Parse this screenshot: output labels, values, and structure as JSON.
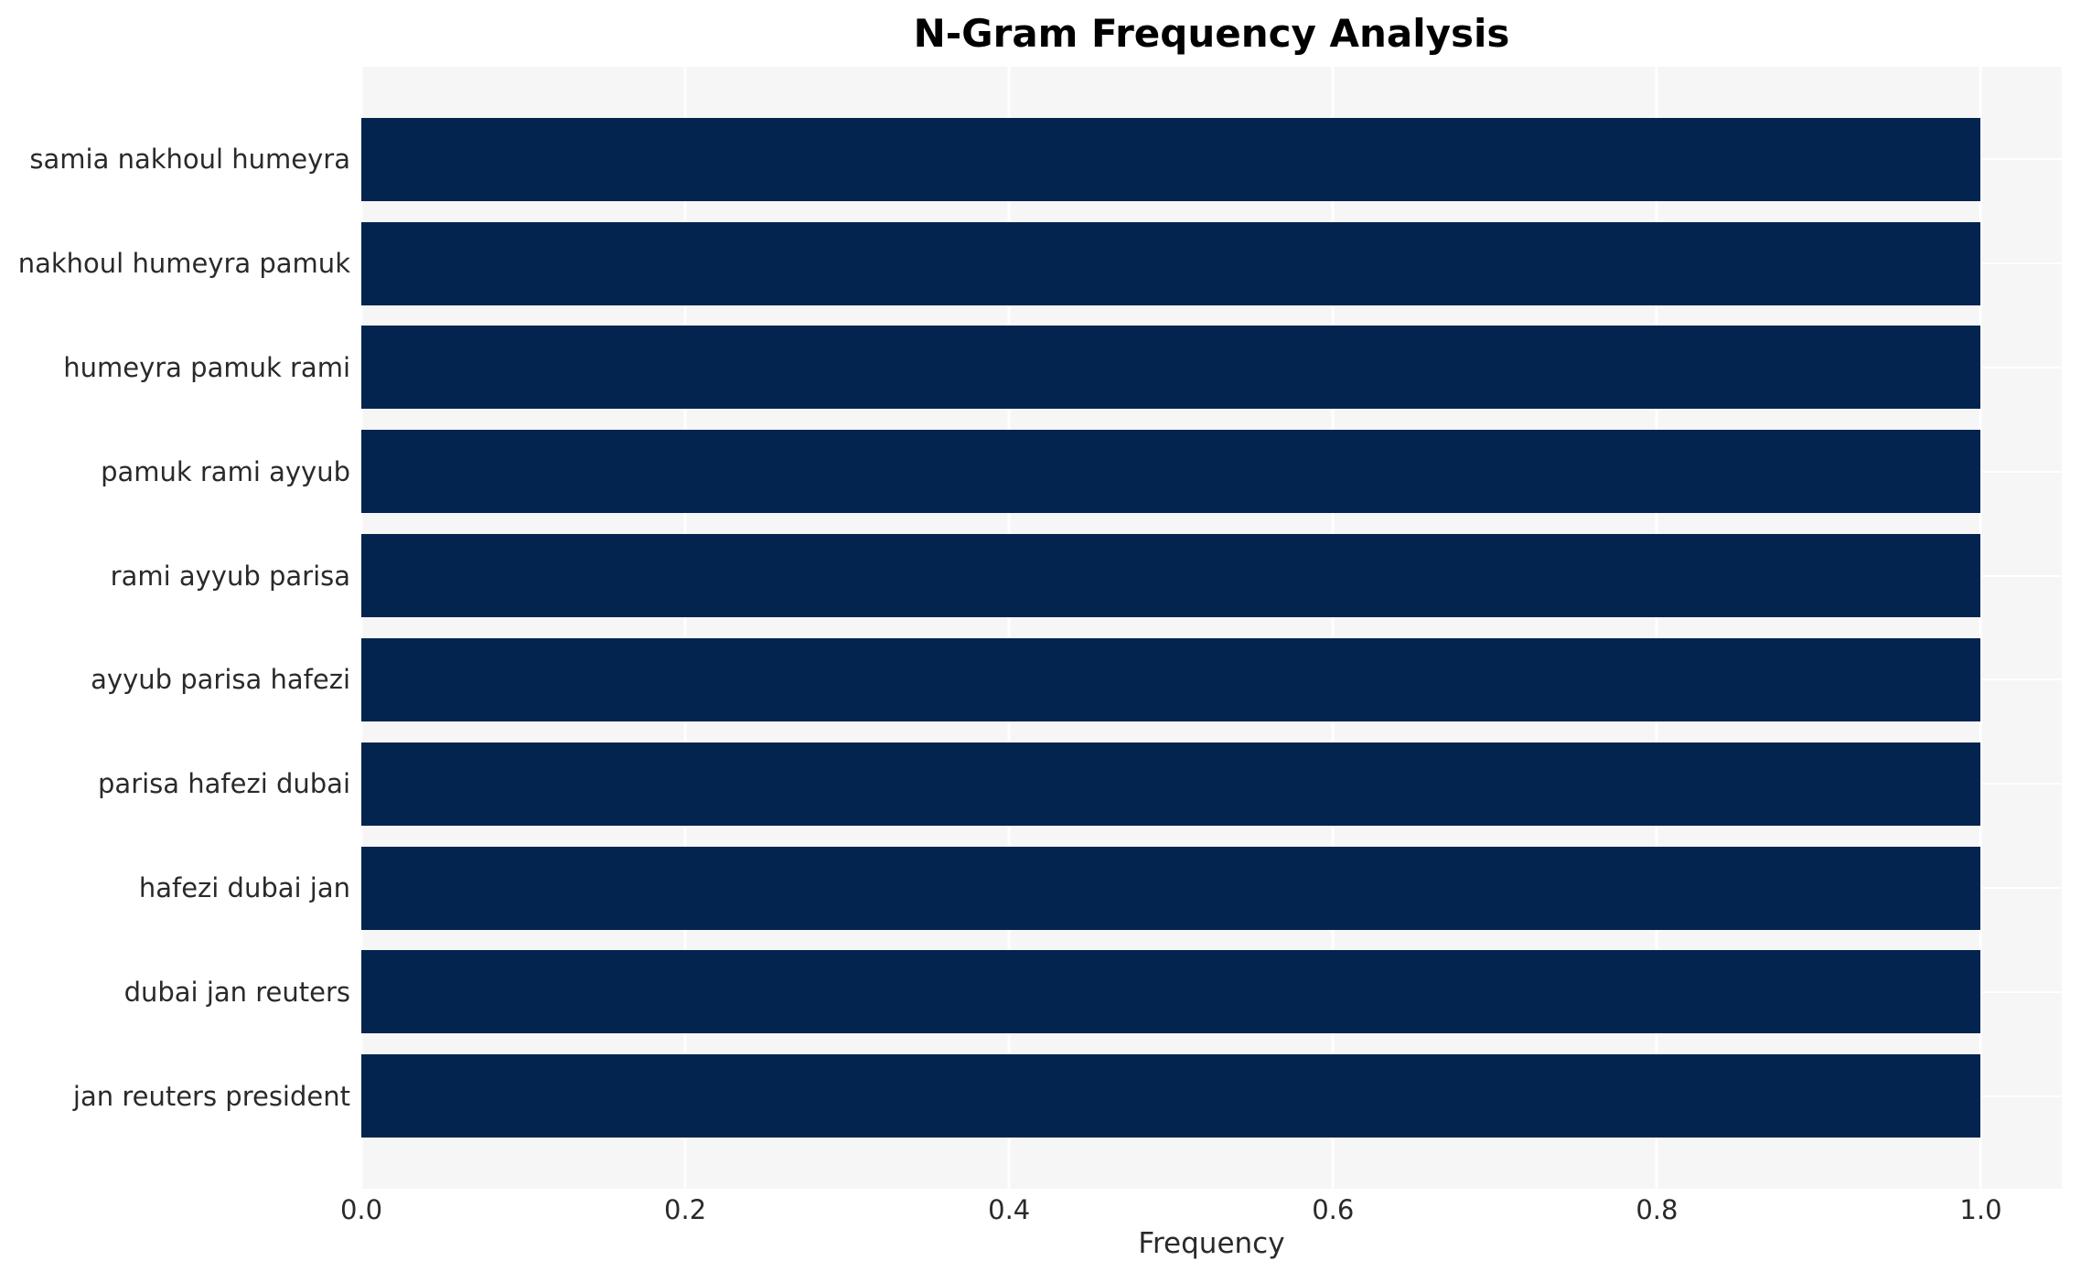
{
  "chart_data": {
    "type": "bar",
    "orientation": "horizontal",
    "title": "N-Gram Frequency Analysis",
    "xlabel": "Frequency",
    "ylabel": "",
    "categories": [
      "samia nakhoul humeyra",
      "nakhoul humeyra pamuk",
      "humeyra pamuk rami",
      "pamuk rami ayyub",
      "rami ayyub parisa",
      "ayyub parisa hafezi",
      "parisa hafezi dubai",
      "hafezi dubai jan",
      "dubai jan reuters",
      "jan reuters president"
    ],
    "values": [
      1.0,
      1.0,
      1.0,
      1.0,
      1.0,
      1.0,
      1.0,
      1.0,
      1.0,
      1.0
    ],
    "xticks": [
      {
        "value": 0.0,
        "label": "0.0"
      },
      {
        "value": 0.2,
        "label": "0.2"
      },
      {
        "value": 0.4,
        "label": "0.4"
      },
      {
        "value": 0.6,
        "label": "0.6"
      },
      {
        "value": 0.8,
        "label": "0.8"
      },
      {
        "value": 1.0,
        "label": "1.0"
      }
    ],
    "xlim": [
      0,
      1.05
    ],
    "bar_height_fraction": 0.8,
    "grid": true,
    "legend": null,
    "colors": {
      "bar": "#02244f",
      "plot_background": "#f6f6f7",
      "figure_background": "#ffffff",
      "grid_line": "#ffffff",
      "tick_text": "#2a2a2a",
      "title_text": "#000000"
    }
  }
}
